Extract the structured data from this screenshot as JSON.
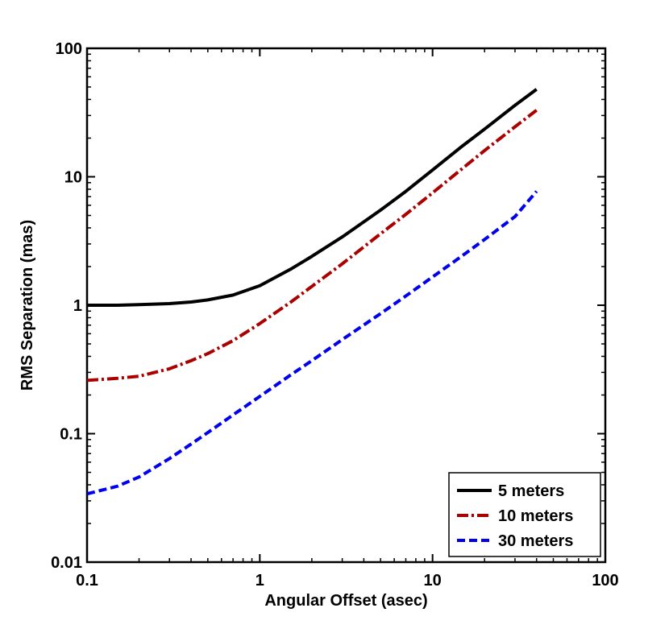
{
  "chart_data": {
    "type": "line",
    "title": "",
    "xlabel": "Angular Offset (asec)",
    "ylabel": "RMS Separation (mas)",
    "xscale": "log",
    "yscale": "log",
    "xlim": [
      0.1,
      100
    ],
    "ylim": [
      0.01,
      100
    ],
    "xticks": [
      0.1,
      1,
      10,
      100
    ],
    "xtick_labels": [
      "0.1",
      "1",
      "10",
      "100"
    ],
    "yticks": [
      0.01,
      0.1,
      1,
      10,
      100
    ],
    "ytick_labels": [
      "0.01",
      "0.1",
      "1",
      "10",
      "100"
    ],
    "grid": false,
    "legend_position": "bottom-right",
    "series": [
      {
        "name": "5 meters",
        "color": "#000000",
        "style": "solid",
        "x": [
          0.1,
          0.15,
          0.2,
          0.3,
          0.4,
          0.5,
          0.7,
          1,
          1.5,
          2,
          3,
          5,
          7,
          10,
          15,
          20,
          30,
          40
        ],
        "y": [
          1.0,
          1.0,
          1.01,
          1.03,
          1.06,
          1.1,
          1.2,
          1.42,
          1.9,
          2.4,
          3.4,
          5.5,
          7.7,
          11.3,
          17.5,
          23.5,
          36,
          48
        ]
      },
      {
        "name": "10 meters",
        "color": "#aa0000",
        "style": "dashdot",
        "x": [
          0.1,
          0.15,
          0.2,
          0.3,
          0.4,
          0.5,
          0.7,
          1,
          1.5,
          2,
          3,
          5,
          7,
          10,
          15,
          20,
          30,
          40
        ],
        "y": [
          0.26,
          0.27,
          0.28,
          0.32,
          0.37,
          0.42,
          0.53,
          0.72,
          1.05,
          1.4,
          2.1,
          3.6,
          5.1,
          7.5,
          11.7,
          16,
          24.5,
          33
        ]
      },
      {
        "name": "30 meters",
        "color": "#0000ee",
        "style": "dashed",
        "x": [
          0.1,
          0.15,
          0.2,
          0.3,
          0.4,
          0.5,
          0.7,
          1,
          1.5,
          2,
          3,
          5,
          7,
          10,
          15,
          20,
          30,
          40
        ],
        "y": [
          0.034,
          0.039,
          0.046,
          0.064,
          0.083,
          0.102,
          0.14,
          0.195,
          0.285,
          0.37,
          0.54,
          0.86,
          1.18,
          1.66,
          2.45,
          3.25,
          4.9,
          7.7
        ]
      }
    ]
  }
}
